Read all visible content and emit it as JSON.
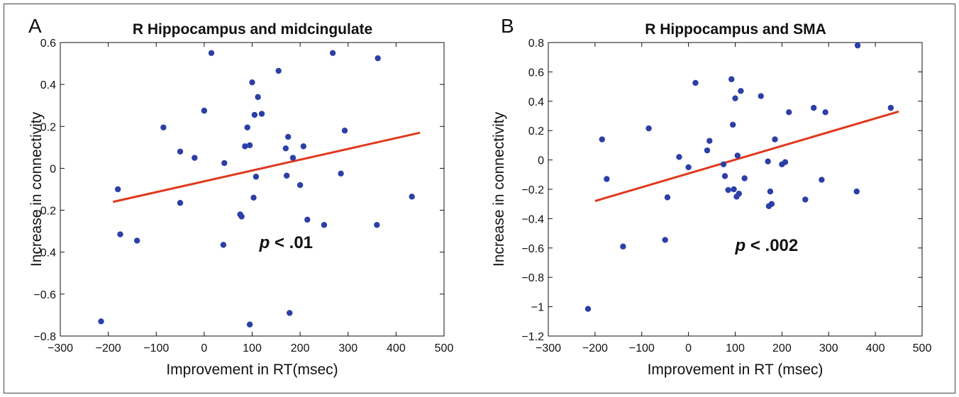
{
  "colors": {
    "point": "#2b3fa6",
    "fit_line": "#e0391e",
    "frame": "#444444",
    "axis": "#111111"
  },
  "chart_data": [
    {
      "type": "scatter",
      "panel_label": "A",
      "title": "R Hippocampus and midcingulate",
      "xlabel": "Improvement in RT(msec)",
      "ylabel": "Increase in connectivity",
      "xlim": [
        -300,
        500
      ],
      "ylim": [
        -0.8,
        0.6
      ],
      "xticks": [
        -300,
        -200,
        -100,
        0,
        100,
        200,
        300,
        400,
        500
      ],
      "xtick_labels": [
        "−300",
        "−200",
        "−100",
        "0",
        "100",
        "200",
        "300",
        "400",
        "500"
      ],
      "yticks": [
        -0.8,
        -0.6,
        -0.4,
        -0.2,
        0,
        0.2,
        0.4,
        0.6
      ],
      "ytick_labels": [
        "−0.8",
        "−0.6",
        "−0.4",
        "−0.2",
        "0",
        "0.2",
        "0.4",
        "0.6"
      ],
      "grid": false,
      "annotation": {
        "p_symbol": "p",
        "text": " < .01",
        "x": 115,
        "y": -0.38
      },
      "fit_line": {
        "x": [
          -190,
          450
        ],
        "y": [
          -0.16,
          0.17
        ]
      },
      "points": [
        [
          -215,
          -0.73
        ],
        [
          -180,
          -0.1
        ],
        [
          -175,
          -0.315
        ],
        [
          -140,
          -0.345
        ],
        [
          -85,
          0.195
        ],
        [
          -50,
          0.08
        ],
        [
          -50,
          -0.165
        ],
        [
          -20,
          0.05
        ],
        [
          0,
          0.275
        ],
        [
          15,
          0.55
        ],
        [
          40,
          -0.365
        ],
        [
          42,
          0.025
        ],
        [
          75,
          -0.22
        ],
        [
          78,
          -0.23
        ],
        [
          85,
          0.105
        ],
        [
          90,
          0.195
        ],
        [
          95,
          0.11
        ],
        [
          95,
          -0.745
        ],
        [
          100,
          0.41
        ],
        [
          103,
          -0.14
        ],
        [
          105,
          0.255
        ],
        [
          108,
          -0.04
        ],
        [
          112,
          0.34
        ],
        [
          120,
          0.26
        ],
        [
          155,
          0.465
        ],
        [
          170,
          0.095
        ],
        [
          172,
          -0.035
        ],
        [
          175,
          0.15
        ],
        [
          178,
          -0.69
        ],
        [
          185,
          0.05
        ],
        [
          200,
          -0.08
        ],
        [
          207,
          0.105
        ],
        [
          215,
          -0.245
        ],
        [
          250,
          -0.27
        ],
        [
          268,
          0.55
        ],
        [
          285,
          -0.025
        ],
        [
          293,
          0.18
        ],
        [
          360,
          -0.27
        ],
        [
          362,
          0.525
        ],
        [
          433,
          -0.135
        ]
      ]
    },
    {
      "type": "scatter",
      "panel_label": "B",
      "title": "R Hippocampus and SMA",
      "xlabel": "Improvement in RT (msec)",
      "ylabel": "Increase in connectivity",
      "xlim": [
        -300,
        500
      ],
      "ylim": [
        -1.2,
        0.8
      ],
      "xticks": [
        -300,
        -200,
        -100,
        0,
        100,
        200,
        300,
        400,
        500
      ],
      "xtick_labels": [
        "−300",
        "−200",
        "−100",
        "0",
        "100",
        "200",
        "300",
        "400",
        "500"
      ],
      "yticks": [
        -1.2,
        -1.0,
        -0.8,
        -0.6,
        -0.4,
        -0.2,
        0,
        0.2,
        0.4,
        0.6,
        0.8
      ],
      "ytick_labels": [
        "−1.2",
        "−1",
        "−0.8",
        "−0.6",
        "−0.4",
        "−0.2",
        "0",
        "0.2",
        "0.4",
        "0.6",
        "0.8"
      ],
      "grid": false,
      "annotation": {
        "p_symbol": "p",
        "text": " < .002",
        "x": 100,
        "y": -0.62
      },
      "fit_line": {
        "x": [
          -200,
          450
        ],
        "y": [
          -0.28,
          0.33
        ]
      },
      "points": [
        [
          -215,
          -1.015
        ],
        [
          -185,
          0.14
        ],
        [
          -175,
          -0.13
        ],
        [
          -140,
          -0.59
        ],
        [
          -85,
          0.215
        ],
        [
          -50,
          -0.545
        ],
        [
          -45,
          -0.255
        ],
        [
          -20,
          0.02
        ],
        [
          0,
          -0.05
        ],
        [
          15,
          0.525
        ],
        [
          40,
          0.065
        ],
        [
          45,
          0.13
        ],
        [
          75,
          -0.03
        ],
        [
          78,
          -0.11
        ],
        [
          85,
          -0.205
        ],
        [
          92,
          0.55
        ],
        [
          95,
          0.24
        ],
        [
          97,
          -0.2
        ],
        [
          100,
          0.42
        ],
        [
          103,
          -0.25
        ],
        [
          105,
          0.03
        ],
        [
          108,
          -0.23
        ],
        [
          112,
          0.47
        ],
        [
          120,
          -0.125
        ],
        [
          155,
          0.435
        ],
        [
          170,
          -0.01
        ],
        [
          172,
          -0.315
        ],
        [
          175,
          -0.215
        ],
        [
          178,
          -0.3
        ],
        [
          185,
          0.14
        ],
        [
          200,
          -0.03
        ],
        [
          207,
          -0.015
        ],
        [
          215,
          0.325
        ],
        [
          250,
          -0.27
        ],
        [
          268,
          0.355
        ],
        [
          285,
          -0.135
        ],
        [
          293,
          0.325
        ],
        [
          360,
          -0.215
        ],
        [
          362,
          0.78
        ],
        [
          433,
          0.355
        ]
      ]
    }
  ]
}
